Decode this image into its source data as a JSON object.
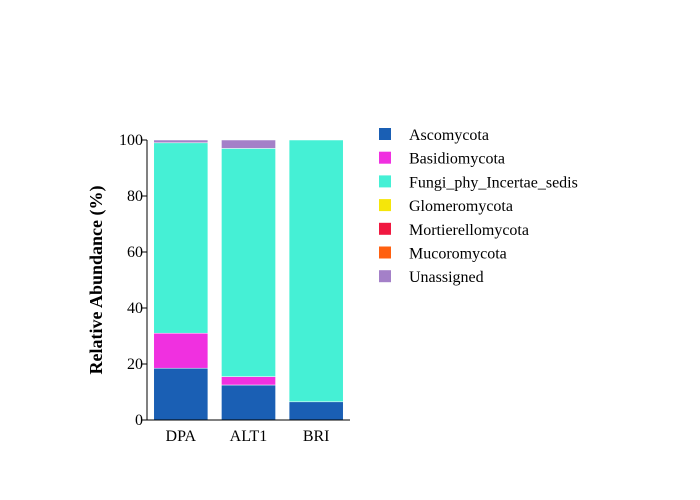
{
  "chart_data": {
    "type": "bar",
    "stacked": true,
    "title": "",
    "xlabel": "",
    "ylabel": "Relative Abundance (%)",
    "ylim": [
      0,
      100
    ],
    "yticks": [
      0,
      20,
      40,
      60,
      80,
      100
    ],
    "categories": [
      "DPA",
      "ALT1",
      "BRI"
    ],
    "grid": false,
    "legend_position": "right",
    "series": [
      {
        "name": "Ascomycota",
        "color": "#1a5fb4",
        "values": [
          18.5,
          12.5,
          6.5
        ]
      },
      {
        "name": "Basidiomycota",
        "color": "#f030e0",
        "values": [
          12.5,
          3.0,
          0.0
        ]
      },
      {
        "name": "Fungi_phy_Incertae_sedis",
        "color": "#45f0d5",
        "values": [
          68.0,
          81.5,
          93.5
        ]
      },
      {
        "name": "Glomeromycota",
        "color": "#f5e60a",
        "values": [
          0.0,
          0.0,
          0.0
        ]
      },
      {
        "name": "Mortierellomycota",
        "color": "#f01840",
        "values": [
          0.0,
          0.0,
          0.0
        ]
      },
      {
        "name": "Mucoromycota",
        "color": "#ff6010",
        "values": [
          0.0,
          0.0,
          0.0
        ]
      },
      {
        "name": "Unassigned",
        "color": "#a480c8",
        "values": [
          1.0,
          3.0,
          0.0
        ]
      }
    ]
  }
}
